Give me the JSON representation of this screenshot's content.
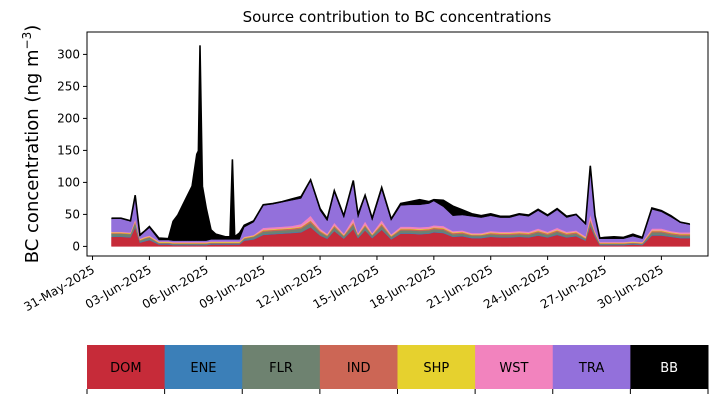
{
  "chart_data": {
    "type": "area",
    "stacked": true,
    "title": "Source contribution to BC concentrations",
    "ylabel": "BC concentration (ng m",
    "ylabel_exponent": "−3",
    "ylabel_close": ")",
    "ylim": [
      -15,
      335
    ],
    "yticks": [
      0,
      50,
      100,
      150,
      200,
      250,
      300
    ],
    "xlim": [
      "2025-05-30T17:00",
      "2025-07-02T11:00"
    ],
    "xticks": [
      "2025-05-31",
      "2025-06-03",
      "2025-06-06",
      "2025-06-09",
      "2025-06-12",
      "2025-06-15",
      "2025-06-18",
      "2025-06-21",
      "2025-06-24",
      "2025-06-27",
      "2025-06-30"
    ],
    "xticklabels": [
      "31-May-2025",
      "03-Jun-2025",
      "06-Jun-2025",
      "09-Jun-2025",
      "12-Jun-2025",
      "15-Jun-2025",
      "18-Jun-2025",
      "21-Jun-2025",
      "24-Jun-2025",
      "27-Jun-2025",
      "30-Jun-2025"
    ],
    "grid": false,
    "legend_position": "bottom",
    "legend": [
      "DOM",
      "ENE",
      "FLR",
      "IND",
      "SHP",
      "WST",
      "TRA",
      "BB"
    ],
    "colors": [
      "#c62b39",
      "#3b7fb8",
      "#6e8270",
      "#cc6655",
      "#e6d12e",
      "#f283be",
      "#9370db",
      "#000000"
    ],
    "legend_text_colors": [
      "#000000",
      "#000000",
      "#000000",
      "#000000",
      "#000000",
      "#000000",
      "#000000",
      "#ffffff"
    ],
    "x": [
      "2025-06-01T00:00",
      "2025-06-01T12:00",
      "2025-06-02T00:00",
      "2025-06-02T06:00",
      "2025-06-02T12:00",
      "2025-06-02T18:00",
      "2025-06-03T00:00",
      "2025-06-03T12:00",
      "2025-06-04T00:00",
      "2025-06-04T06:00",
      "2025-06-04T12:00",
      "2025-06-04T18:00",
      "2025-06-05T00:00",
      "2025-06-05T06:00",
      "2025-06-05T12:00",
      "2025-06-05T14:00",
      "2025-06-05T16:00",
      "2025-06-05T19:00",
      "2025-06-06T00:00",
      "2025-06-06T06:00",
      "2025-06-06T12:00",
      "2025-06-07T00:00",
      "2025-06-07T06:00",
      "2025-06-07T09:00",
      "2025-06-07T12:00",
      "2025-06-07T18:00",
      "2025-06-08T00:00",
      "2025-06-08T12:00",
      "2025-06-09T00:00",
      "2025-06-09T12:00",
      "2025-06-10T00:00",
      "2025-06-10T12:00",
      "2025-06-11T00:00",
      "2025-06-11T12:00",
      "2025-06-12T00:00",
      "2025-06-12T09:00",
      "2025-06-12T18:00",
      "2025-06-13T06:00",
      "2025-06-13T18:00",
      "2025-06-14T00:00",
      "2025-06-14T09:00",
      "2025-06-14T18:00",
      "2025-06-15T06:00",
      "2025-06-15T18:00",
      "2025-06-16T06:00",
      "2025-06-16T18:00",
      "2025-06-17T06:00",
      "2025-06-17T18:00",
      "2025-06-18T00:00",
      "2025-06-18T12:00",
      "2025-06-19T00:00",
      "2025-06-19T12:00",
      "2025-06-20T00:00",
      "2025-06-20T12:00",
      "2025-06-21T00:00",
      "2025-06-21T12:00",
      "2025-06-22T00:00",
      "2025-06-22T12:00",
      "2025-06-23T00:00",
      "2025-06-23T12:00",
      "2025-06-24T00:00",
      "2025-06-24T12:00",
      "2025-06-25T00:00",
      "2025-06-25T12:00",
      "2025-06-26T00:00",
      "2025-06-26T06:00",
      "2025-06-26T12:00",
      "2025-06-26T18:00",
      "2025-06-27T00:00",
      "2025-06-27T12:00",
      "2025-06-28T00:00",
      "2025-06-28T12:00",
      "2025-06-29T00:00",
      "2025-06-29T12:00",
      "2025-06-30T00:00",
      "2025-06-30T12:00",
      "2025-07-01T00:00",
      "2025-07-01T12:00"
    ],
    "series": [
      {
        "name": "DOM",
        "values": [
          15,
          15,
          14,
          30,
          6,
          8,
          10,
          3,
          3,
          2,
          2,
          2,
          2,
          2,
          2,
          2,
          2,
          2,
          2,
          3,
          3,
          3,
          3,
          3,
          3,
          3,
          9,
          11,
          18,
          19,
          20,
          21,
          22,
          30,
          17,
          12,
          24,
          12,
          27,
          13,
          25,
          13,
          26,
          11,
          20,
          20,
          19,
          20,
          22,
          21,
          15,
          16,
          13,
          13,
          15,
          14,
          14,
          15,
          14,
          17,
          14,
          18,
          14,
          16,
          9,
          32,
          15,
          2,
          2,
          2,
          2,
          3,
          2,
          17,
          17,
          15,
          13,
          13
        ]
      },
      {
        "name": "ENE",
        "values": [
          1,
          1,
          1,
          1,
          1,
          1,
          1,
          1,
          1,
          1,
          1,
          1,
          1,
          1,
          1,
          1,
          1,
          1,
          1,
          1,
          1,
          1,
          1,
          1,
          1,
          1,
          1,
          1,
          1,
          1,
          1,
          1,
          1,
          1,
          1,
          1,
          1,
          1,
          1,
          1,
          1,
          1,
          1,
          1,
          1,
          1,
          1,
          1,
          1,
          1,
          1,
          1,
          1,
          1,
          1,
          1,
          1,
          1,
          1,
          1,
          1,
          1,
          1,
          1,
          1,
          1,
          1,
          1,
          1,
          1,
          1,
          1,
          1,
          1,
          1,
          1,
          1,
          1
        ]
      },
      {
        "name": "FLR",
        "values": [
          4,
          4,
          4,
          6,
          2,
          3,
          3,
          1,
          1,
          1,
          1,
          1,
          1,
          1,
          1,
          1,
          1,
          1,
          1,
          1,
          1,
          1,
          1,
          1,
          1,
          1,
          2,
          3,
          4,
          4,
          4,
          4,
          5,
          6,
          4,
          3,
          5,
          3,
          6,
          3,
          5,
          3,
          5,
          3,
          4,
          4,
          4,
          4,
          4,
          4,
          3,
          3,
          3,
          3,
          3,
          3,
          3,
          3,
          3,
          4,
          3,
          4,
          3,
          3,
          2,
          6,
          3,
          1,
          1,
          1,
          1,
          1,
          1,
          4,
          4,
          3,
          3,
          3
        ]
      },
      {
        "name": "IND",
        "values": [
          1,
          1,
          1,
          2,
          1,
          1,
          1,
          1,
          1,
          1,
          1,
          1,
          1,
          1,
          1,
          1,
          1,
          1,
          1,
          1,
          1,
          1,
          1,
          1,
          1,
          1,
          1,
          1,
          2,
          2,
          2,
          2,
          2,
          3,
          2,
          1,
          2,
          1,
          3,
          1,
          2,
          1,
          3,
          1,
          2,
          2,
          2,
          2,
          2,
          2,
          2,
          2,
          1,
          1,
          2,
          2,
          2,
          2,
          2,
          2,
          2,
          2,
          2,
          2,
          1,
          3,
          2,
          1,
          1,
          1,
          1,
          1,
          1,
          2,
          2,
          2,
          2,
          2
        ]
      },
      {
        "name": "SHP",
        "values": [
          1,
          1,
          1,
          1,
          1,
          1,
          1,
          1,
          1,
          1,
          1,
          1,
          1,
          1,
          1,
          1,
          1,
          1,
          1,
          1,
          1,
          1,
          1,
          1,
          1,
          1,
          1,
          1,
          1,
          1,
          1,
          1,
          1,
          1,
          1,
          1,
          1,
          1,
          1,
          1,
          1,
          1,
          1,
          1,
          1,
          1,
          1,
          1,
          1,
          1,
          1,
          1,
          1,
          1,
          1,
          1,
          1,
          1,
          1,
          1,
          1,
          1,
          1,
          1,
          1,
          1,
          1,
          1,
          1,
          1,
          1,
          1,
          1,
          1,
          1,
          1,
          1,
          1
        ]
      },
      {
        "name": "WST",
        "values": [
          1,
          1,
          1,
          3,
          1,
          1,
          1,
          1,
          1,
          1,
          1,
          1,
          1,
          1,
          1,
          1,
          1,
          1,
          1,
          1,
          1,
          1,
          1,
          1,
          1,
          1,
          1,
          1,
          3,
          3,
          3,
          3,
          4,
          7,
          3,
          2,
          4,
          2,
          6,
          2,
          5,
          2,
          5,
          2,
          3,
          3,
          3,
          3,
          3,
          3,
          2,
          2,
          2,
          2,
          2,
          2,
          2,
          2,
          2,
          3,
          2,
          3,
          2,
          2,
          2,
          7,
          2,
          1,
          1,
          1,
          1,
          1,
          1,
          3,
          3,
          2,
          2,
          2
        ]
      },
      {
        "name": "TRA",
        "values": [
          20,
          21,
          17,
          35,
          4,
          8,
          12,
          2,
          2,
          2,
          2,
          2,
          2,
          2,
          2,
          2,
          2,
          2,
          2,
          3,
          3,
          3,
          3,
          3,
          3,
          3,
          15,
          20,
          35,
          36,
          38,
          40,
          40,
          55,
          28,
          20,
          48,
          25,
          58,
          24,
          40,
          20,
          48,
          22,
          33,
          34,
          35,
          36,
          38,
          30,
          24,
          24,
          26,
          24,
          24,
          22,
          22,
          25,
          24,
          28,
          24,
          28,
          22,
          24,
          18,
          74,
          22,
          5,
          5,
          5,
          5,
          8,
          5,
          30,
          26,
          22,
          15,
          12
        ]
      },
      {
        "name": "BB",
        "values": [
          1,
          0,
          1,
          2,
          2,
          1,
          2,
          3,
          2,
          30,
          40,
          55,
          70,
          85,
          135,
          140,
          305,
          85,
          50,
          15,
          8,
          4,
          4,
          125,
          4,
          10,
          3,
          2,
          1,
          1,
          1,
          2,
          3,
          1,
          3,
          3,
          2,
          3,
          1,
          5,
          1,
          3,
          3,
          2,
          3,
          5,
          8,
          3,
          2,
          10,
          15,
          8,
          4,
          3,
          3,
          2,
          2,
          2,
          2,
          2,
          2,
          2,
          2,
          1,
          2,
          2,
          2,
          1,
          2,
          3,
          2,
          3,
          2,
          2,
          2,
          2,
          1,
          1
        ]
      }
    ]
  }
}
